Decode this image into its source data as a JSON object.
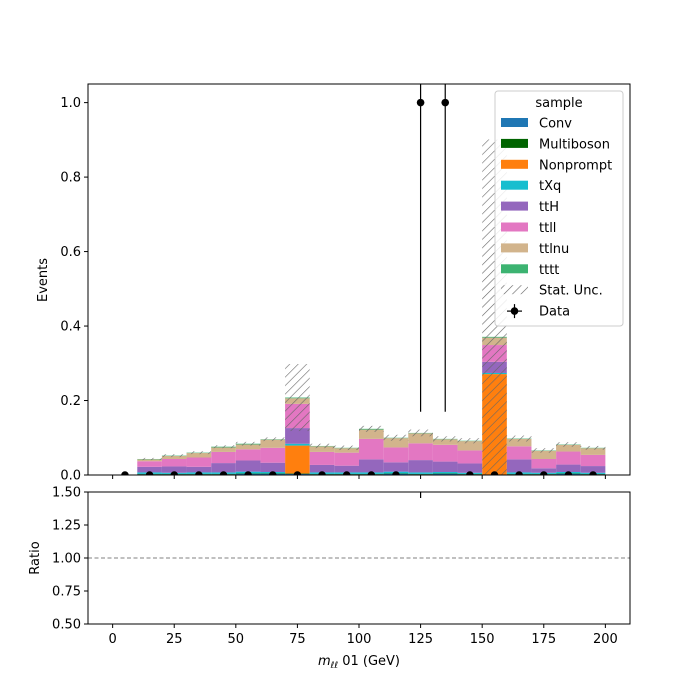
{
  "chart_data": [
    {
      "type": "bar",
      "stacked": true,
      "xlabel_math": "m",
      "xlabel_sub": "ℓℓ",
      "xlabel_rest": " 01 (GeV)",
      "ylabel": "Events",
      "xlim": [
        -10,
        210
      ],
      "ylim": [
        0,
        1.05
      ],
      "xticks": [
        0,
        25,
        50,
        75,
        100,
        125,
        150,
        175,
        200
      ],
      "yticks": [
        0.0,
        0.2,
        0.4,
        0.6,
        0.8,
        1.0
      ],
      "ytick_labels": [
        "0.0",
        "0.2",
        "0.4",
        "0.6",
        "0.8",
        "1.0"
      ],
      "bin_edges": [
        0,
        10,
        20,
        30,
        40,
        50,
        60,
        70,
        80,
        90,
        100,
        110,
        120,
        130,
        140,
        150,
        160,
        170,
        180,
        190,
        200
      ],
      "legend": {
        "title": "sample",
        "placement": "top-right"
      },
      "series": [
        {
          "name": "Conv",
          "color": "#1f77b4",
          "values": [
            0,
            0.002,
            0.002,
            0.002,
            0.002,
            0.003,
            0.003,
            0.003,
            0.002,
            0.002,
            0.002,
            0.003,
            0.002,
            0.003,
            0.002,
            0,
            0.002,
            0.002,
            0.003,
            0.002
          ]
        },
        {
          "name": "Multiboson",
          "color": "#006400",
          "values": [
            0,
            0.001,
            0.001,
            0.001,
            0.001,
            0.001,
            0.001,
            0.001,
            0.001,
            0.001,
            0.001,
            0.001,
            0.001,
            0.001,
            0.001,
            0.001,
            0.001,
            0.001,
            0.001,
            0.001
          ]
        },
        {
          "name": "Nonprompt",
          "color": "#ff7f0e",
          "values": [
            0,
            0,
            0,
            0,
            0,
            0,
            0,
            0.075,
            0,
            0,
            0,
            0,
            0,
            0,
            0,
            0.27,
            0,
            0,
            0,
            0
          ]
        },
        {
          "name": "tXq",
          "color": "#17becf",
          "values": [
            0,
            0.004,
            0.003,
            0.004,
            0.004,
            0.005,
            0.004,
            0.005,
            0.004,
            0.004,
            0.004,
            0.005,
            0.004,
            0.004,
            0.003,
            0.003,
            0.004,
            0.003,
            0.004,
            0.003
          ]
        },
        {
          "name": "ttH",
          "color": "#9467bd",
          "values": [
            0,
            0.015,
            0.017,
            0.015,
            0.025,
            0.03,
            0.025,
            0.042,
            0.02,
            0.018,
            0.035,
            0.025,
            0.033,
            0.028,
            0.025,
            0.03,
            0.035,
            0.012,
            0.02,
            0.018
          ]
        },
        {
          "name": "ttll",
          "color": "#e377c2",
          "values": [
            0,
            0.015,
            0.02,
            0.025,
            0.03,
            0.03,
            0.04,
            0.065,
            0.035,
            0.035,
            0.055,
            0.04,
            0.045,
            0.045,
            0.035,
            0.045,
            0.035,
            0.025,
            0.035,
            0.03
          ]
        },
        {
          "name": "ttlnu",
          "color": "#d2b48c",
          "values": [
            0,
            0.005,
            0.008,
            0.012,
            0.012,
            0.013,
            0.022,
            0.015,
            0.015,
            0.012,
            0.025,
            0.025,
            0.027,
            0.015,
            0.025,
            0.02,
            0.02,
            0.022,
            0.018,
            0.018
          ]
        },
        {
          "name": "tttt",
          "color": "#3cb371",
          "values": [
            0,
            0.001,
            0.001,
            0.001,
            0.002,
            0.002,
            0.001,
            0.002,
            0.001,
            0.001,
            0.002,
            0.001,
            0.001,
            0.001,
            0.001,
            0.002,
            0.001,
            0.001,
            0.001,
            0.001
          ]
        }
      ],
      "stat_unc": {
        "name": "Stat. Unc.",
        "half_width": [
          0,
          0.003,
          0.004,
          0.004,
          0.004,
          0.005,
          0.005,
          0.09,
          0.006,
          0.006,
          0.008,
          0.008,
          0.009,
          0.007,
          0.007,
          0.53,
          0.008,
          0.006,
          0.006,
          0.005
        ]
      },
      "data": {
        "name": "Data",
        "x": [
          5,
          15,
          25,
          35,
          45,
          55,
          65,
          75,
          85,
          95,
          105,
          115,
          125,
          135,
          145,
          155,
          165,
          175,
          185,
          195
        ],
        "y": [
          0,
          0,
          0,
          0,
          0,
          0,
          0,
          0,
          0,
          0,
          0,
          0,
          1,
          1,
          0,
          0,
          0,
          0,
          0,
          0
        ],
        "yerr_low": [
          0,
          0,
          0,
          0,
          0,
          0,
          0,
          0,
          0,
          0,
          0,
          0,
          0.83,
          0.83,
          0,
          0,
          0,
          0,
          0,
          0
        ],
        "yerr_high": [
          0,
          0,
          0,
          0,
          0,
          0,
          0,
          0,
          0,
          0,
          0,
          0,
          1.36,
          1.36,
          0,
          0,
          0,
          0,
          0,
          0
        ]
      }
    },
    {
      "type": "line",
      "xlabel_math": "m",
      "xlabel_sub": "ℓℓ",
      "xlabel_rest": " 01 (GeV)",
      "ylabel": "Ratio",
      "xlim": [
        -10,
        210
      ],
      "ylim": [
        0.5,
        1.5
      ],
      "xticks": [
        0,
        25,
        50,
        75,
        100,
        125,
        150,
        175,
        200
      ],
      "xtick_labels": [
        "0",
        "25",
        "50",
        "75",
        "100",
        "125",
        "150",
        "175",
        "200"
      ],
      "yticks": [
        0.5,
        0.75,
        1.0,
        1.25,
        1.5
      ],
      "ytick_labels": [
        "0.50",
        "0.75",
        "1.00",
        "1.25",
        "1.50"
      ],
      "reference_line": 1.0,
      "ratio_points": {
        "x": [
          125
        ],
        "y": [
          null
        ],
        "yerr_high": [
          10
        ]
      }
    }
  ]
}
